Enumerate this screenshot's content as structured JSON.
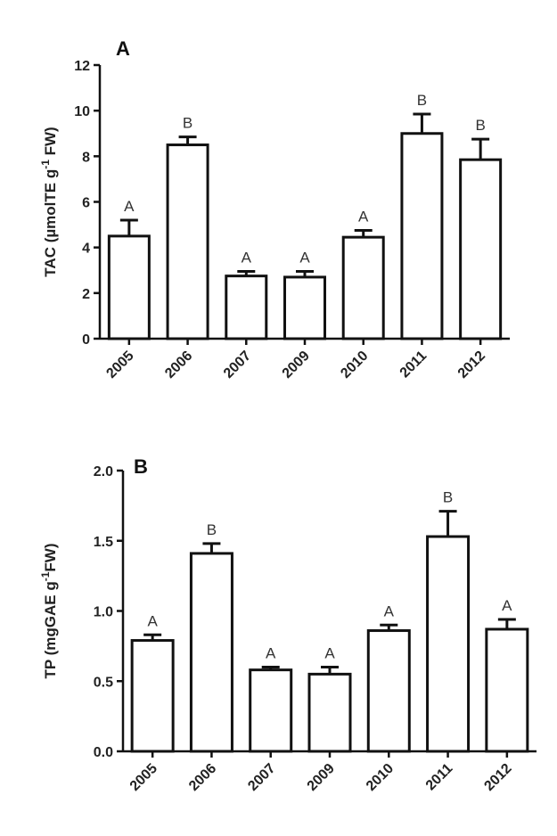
{
  "chart_data": [
    {
      "panel": "A",
      "type": "bar",
      "ylabel_main": "TAC (µmolTE g",
      "ylabel_sup": "-1",
      "ylabel_end": " FW)",
      "categories": [
        "2005",
        "2006",
        "2007",
        "2009",
        "2010",
        "2011",
        "2012"
      ],
      "values": [
        4.5,
        8.5,
        2.75,
        2.7,
        4.45,
        9.0,
        7.85
      ],
      "errors": [
        0.7,
        0.35,
        0.2,
        0.25,
        0.3,
        0.85,
        0.9
      ],
      "letters": [
        "A",
        "B",
        "A",
        "A",
        "A",
        "B",
        "B"
      ],
      "ylim": [
        0,
        12
      ],
      "yticks": [
        0,
        2,
        4,
        6,
        8,
        10,
        12
      ],
      "ytick_labels": [
        "0",
        "2",
        "4",
        "6",
        "8",
        "10",
        "12"
      ]
    },
    {
      "panel": "B",
      "type": "bar",
      "ylabel_main": "TP (mgGAE g",
      "ylabel_sup": "-1",
      "ylabel_end": "FW)",
      "categories": [
        "2005",
        "2006",
        "2007",
        "2009",
        "2010",
        "2011",
        "2012"
      ],
      "values": [
        0.79,
        1.41,
        0.58,
        0.55,
        0.86,
        1.53,
        0.87
      ],
      "errors": [
        0.04,
        0.07,
        0.02,
        0.05,
        0.04,
        0.18,
        0.07
      ],
      "letters": [
        "A",
        "B",
        "A",
        "A",
        "A",
        "B",
        "A"
      ],
      "ylim": [
        0,
        2.0
      ],
      "yticks": [
        0,
        0.5,
        1.0,
        1.5,
        2.0
      ],
      "ytick_labels": [
        "0.0",
        "0.5",
        "1.0",
        "1.5",
        "2.0"
      ]
    }
  ]
}
